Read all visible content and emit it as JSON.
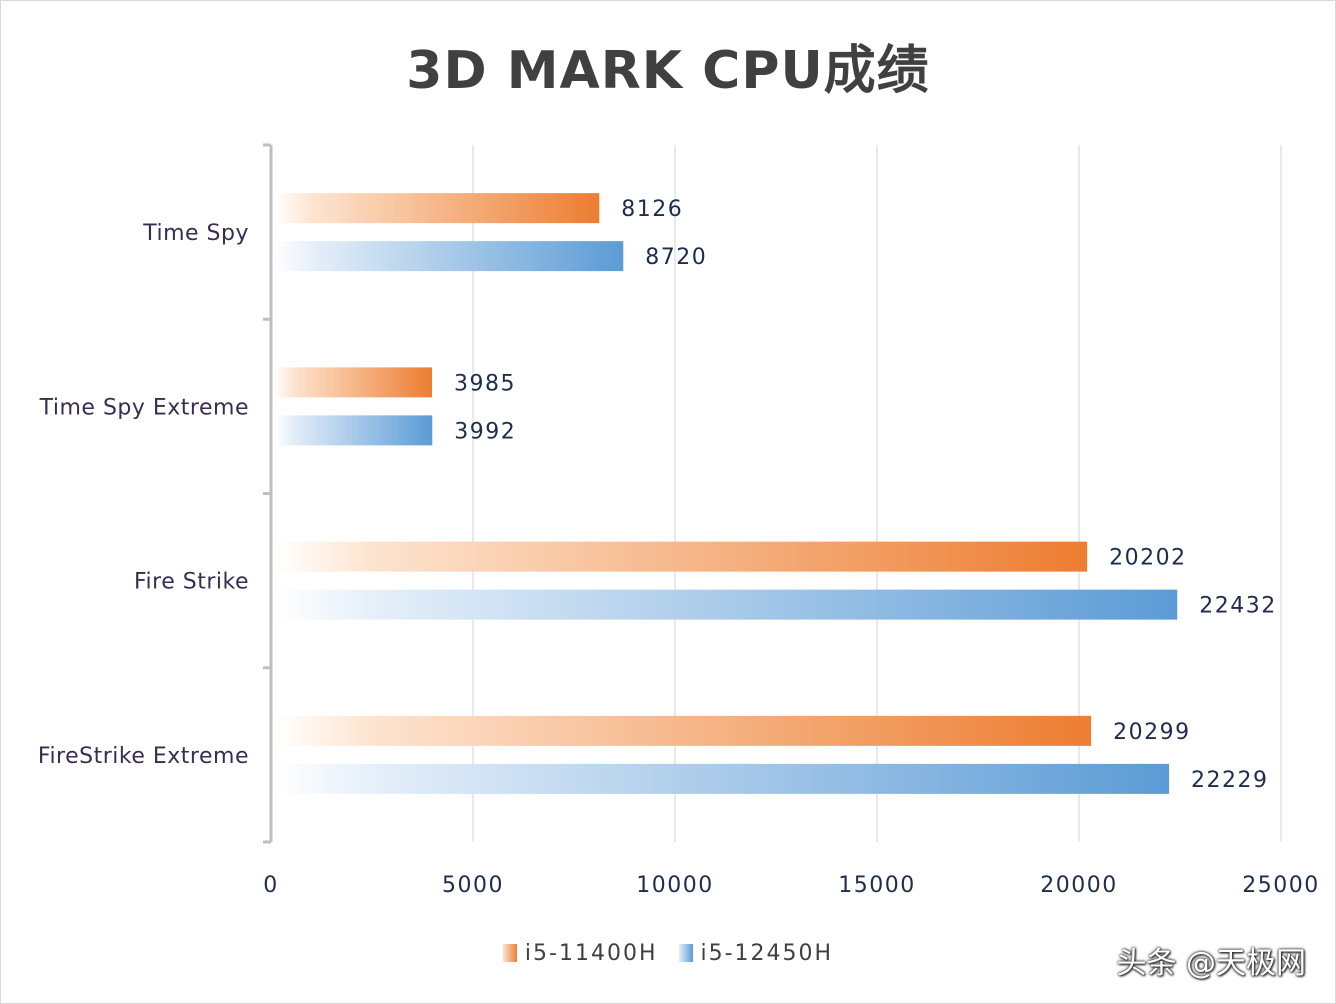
{
  "chart_data": {
    "type": "bar",
    "orientation": "horizontal",
    "title": "3D MARK CPU成绩",
    "categories": [
      "Time Spy",
      "Time Spy Extreme",
      "Fire Strike",
      "FireStrike Extreme"
    ],
    "series": [
      {
        "name": "i5-11400H",
        "values": [
          8126,
          3985,
          20202,
          20299
        ],
        "color": "#ed7d31",
        "color_light": "#fde4d0"
      },
      {
        "name": "i5-12450H",
        "values": [
          8720,
          3992,
          22432,
          22229
        ],
        "color": "#5b9bd5",
        "color_light": "#e4eef9"
      }
    ],
    "xlim": [
      0,
      25000
    ],
    "xticks": [
      0,
      5000,
      10000,
      15000,
      20000,
      25000
    ],
    "xtick_labels": [
      "0",
      "5000",
      "10000",
      "15000",
      "20000",
      "25000"
    ],
    "grid": true,
    "legend": "bottom-center"
  },
  "watermark": "头条 @天极网",
  "colors": {
    "grid": "#d9d9e6",
    "axis": "#bfbfbf",
    "label": "#1f2d4d",
    "title": "#404040"
  }
}
